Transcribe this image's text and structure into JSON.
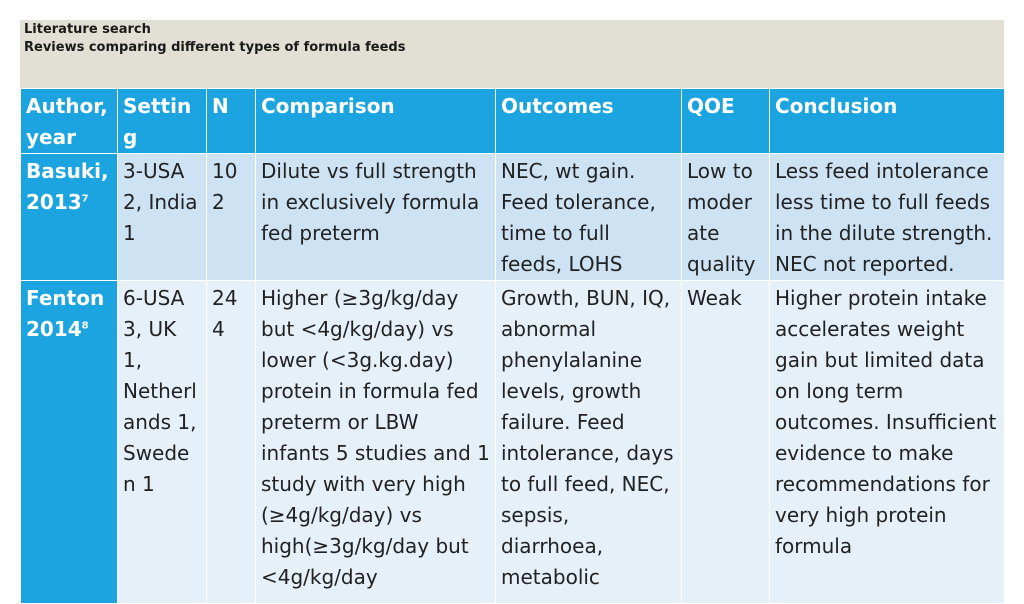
{
  "header": {
    "line1": "Literature search",
    "line2": "Reviews comparing different types of formula feeds"
  },
  "columns": [
    "Author, year",
    "Setting",
    "N",
    "Comparison",
    "Outcomes",
    "QOE",
    "Conclusion"
  ],
  "rows": [
    {
      "author": "Basuki, 2013",
      "ref": "7",
      "setting": "3-USA 2, India 1",
      "n": "102",
      "comparison": "Dilute vs full strength in exclusively formula fed preterm",
      "outcomes": "NEC, wt gain. Feed tolerance, time to full feeds, LOHS",
      "qoe": "Low to moderate quality",
      "conclusion": "Less feed intolerance less time to full feeds in the dilute strength. NEC not reported."
    },
    {
      "author": "Fenton 2014",
      "ref": "8",
      "setting": "6-USA 3, UK 1, Netherlands 1, Sweden 1",
      "n": "244",
      "comparison": "Higher (≥3g/kg/day but <4g/kg/day) vs lower (<3g.kg.day) protein in formula fed preterm or LBW infants 5 studies and 1 study with very high (≥4g/kg/day) vs high(≥3g/kg/day but <4g/kg/day",
      "outcomes": "Growth, BUN, IQ, abnormal phenylalanine levels, growth failure. Feed intolerance, days to full feed, NEC, sepsis, diarrhoea, metabolic",
      "qoe": "Weak",
      "conclusion": "Higher protein intake accelerates weight gain but limited data on long term outcomes. Insufficient evidence to make recommendations for very high protein formula"
    }
  ]
}
